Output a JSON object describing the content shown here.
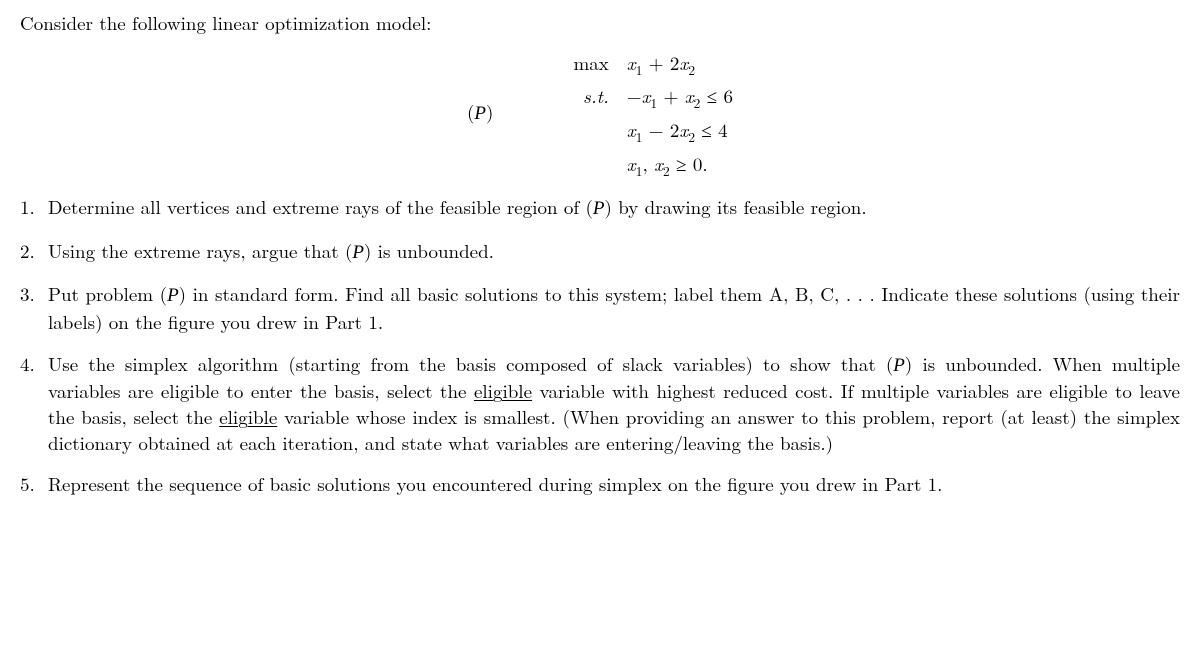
{
  "intro": "Consider the following linear optimization model:",
  "model": {
    "label_open": "(",
    "label_letter": "P",
    "label_close": ")",
    "rows": {
      "obj_op": "max",
      "obj_expr": "x₁ + 2x₂",
      "st_op": "s.t.",
      "c1": "−x₁ + x₂ ≤ 6",
      "c2": "x₁ − 2x₂ ≤ 4",
      "c3": "x₁, x₂ ≥ 0."
    }
  },
  "problems": {
    "p1_a": "Determine all vertices and extreme rays of the feasible region of (",
    "p1_b": ") by drawing its feasible region.",
    "p2_a": "Using the extreme rays, argue that (",
    "p2_b": ") is unbounded.",
    "p3_a": "Put problem (",
    "p3_b": ") in standard form.  Find all basic solutions to this system; label them A, B, C, . . . Indicate these solutions (using their labels) on the figure you drew in Part 1.",
    "p4_a": "Use the simplex algorithm (starting from the basis composed of slack variables) to show that (",
    "p4_b": ") is unbounded. When multiple variables are eligible to enter the basis, select the ",
    "p4_u1": "eligible",
    "p4_c": " variable with highest reduced cost. If multiple variables are eligible to leave the basis, select the ",
    "p4_u2": "eligible",
    "p4_d": " variable whose index is smallest. (When providing an answer to this problem, report (at least) the simplex dictionary obtained at each iteration, and state what variables are entering/leaving the basis.)",
    "p5": "Represent the sequence of basic solutions you encountered during simplex on the figure you drew in Part 1.",
    "calP": "P"
  }
}
